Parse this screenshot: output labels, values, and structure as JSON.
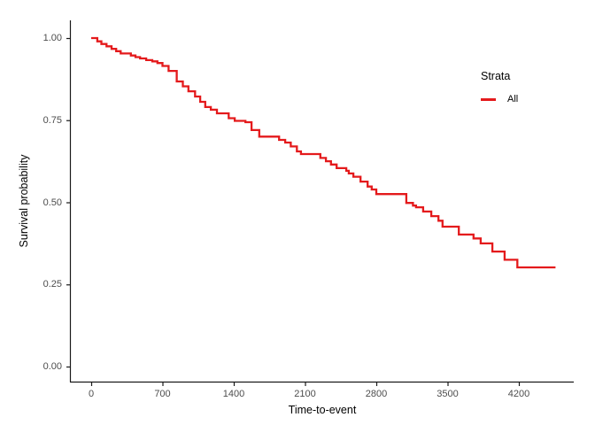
{
  "chart_data": {
    "type": "line",
    "subtype": "kaplan-meier-step-curve",
    "title": "",
    "xlabel": "Time-to-event",
    "ylabel": "Survival probability",
    "xlim": [
      0,
      4560
    ],
    "ylim": [
      0,
      1.0
    ],
    "x_ticks": [
      0,
      700,
      1400,
      2100,
      2800,
      3500,
      4200
    ],
    "y_ticks": [
      "0.00",
      "0.25",
      "0.50",
      "0.75",
      "1.00"
    ],
    "grid": "off",
    "theme": "classic-axes-no-gridlines",
    "legend": {
      "title": "Strata",
      "position": "right",
      "entries": [
        {
          "label": "All",
          "color": "#E41A1C"
        }
      ]
    },
    "series": [
      {
        "name": "All",
        "color": "#E41A1C",
        "step": true,
        "points": [
          [
            0,
            1.0
          ],
          [
            60,
            0.99
          ],
          [
            100,
            0.982
          ],
          [
            150,
            0.975
          ],
          [
            200,
            0.967
          ],
          [
            245,
            0.96
          ],
          [
            290,
            0.953
          ],
          [
            390,
            0.947
          ],
          [
            435,
            0.942
          ],
          [
            480,
            0.938
          ],
          [
            540,
            0.933
          ],
          [
            600,
            0.929
          ],
          [
            650,
            0.924
          ],
          [
            700,
            0.915
          ],
          [
            760,
            0.9
          ],
          [
            840,
            0.868
          ],
          [
            900,
            0.853
          ],
          [
            955,
            0.838
          ],
          [
            1020,
            0.822
          ],
          [
            1070,
            0.806
          ],
          [
            1120,
            0.79
          ],
          [
            1175,
            0.782
          ],
          [
            1235,
            0.771
          ],
          [
            1350,
            0.756
          ],
          [
            1410,
            0.748
          ],
          [
            1515,
            0.744
          ],
          [
            1575,
            0.72
          ],
          [
            1650,
            0.7
          ],
          [
            1845,
            0.69
          ],
          [
            1905,
            0.682
          ],
          [
            1960,
            0.67
          ],
          [
            2020,
            0.655
          ],
          [
            2060,
            0.647
          ],
          [
            2250,
            0.635
          ],
          [
            2305,
            0.625
          ],
          [
            2355,
            0.615
          ],
          [
            2410,
            0.604
          ],
          [
            2505,
            0.596
          ],
          [
            2530,
            0.588
          ],
          [
            2575,
            0.578
          ],
          [
            2645,
            0.563
          ],
          [
            2715,
            0.548
          ],
          [
            2755,
            0.539
          ],
          [
            2800,
            0.525
          ],
          [
            3095,
            0.498
          ],
          [
            3160,
            0.49
          ],
          [
            3190,
            0.485
          ],
          [
            3260,
            0.472
          ],
          [
            3340,
            0.458
          ],
          [
            3410,
            0.444
          ],
          [
            3450,
            0.426
          ],
          [
            3610,
            0.402
          ],
          [
            3755,
            0.39
          ],
          [
            3825,
            0.375
          ],
          [
            3940,
            0.35
          ],
          [
            4060,
            0.325
          ],
          [
            4185,
            0.302
          ],
          [
            4560,
            0.302
          ]
        ]
      }
    ]
  },
  "colors": {
    "curve": "#E41A1C",
    "axis_line": "#1a1a1a",
    "tick_text": "#4d4d4d",
    "title_text": "#000000",
    "background": "#ffffff"
  }
}
